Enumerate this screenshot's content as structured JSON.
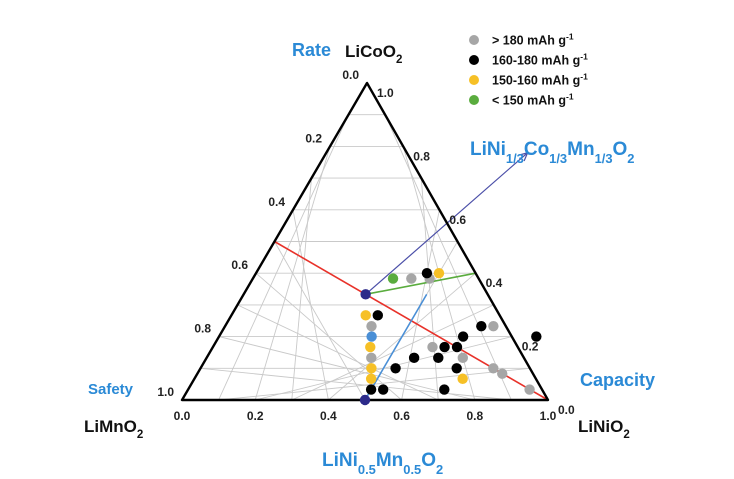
{
  "chart_data": {
    "type": "scatter",
    "subtype": "ternary",
    "vertices": {
      "top": {
        "name": "LiCoO",
        "sub": "2"
      },
      "left": {
        "name": "LiMnO",
        "sub": "2"
      },
      "right": {
        "name": "LiNiO",
        "sub": "2"
      }
    },
    "property_labels": {
      "rate": "Rate",
      "safety": "Safety",
      "capacity": "Capacity"
    },
    "ticks": {
      "bottom": [
        "0.0",
        "0.2",
        "0.4",
        "0.6",
        "0.8",
        "1.0"
      ],
      "left": [
        "0.0",
        "0.2",
        "0.4",
        "0.6",
        "0.8",
        "1.0"
      ],
      "right": [
        "1.0",
        "0.8",
        "0.6",
        "0.4",
        "0.2",
        "0.0"
      ]
    },
    "annotations": {
      "ncm": {
        "parts": [
          [
            "LiNi",
            ""
          ],
          [
            "1/3",
            "sub"
          ],
          [
            "Co",
            ""
          ],
          [
            "1/3",
            "sub"
          ],
          [
            "Mn",
            ""
          ],
          [
            "1/3",
            "sub"
          ],
          [
            "O",
            ""
          ],
          [
            "2",
            "sub"
          ]
        ]
      },
      "nm": {
        "parts": [
          [
            "LiNi",
            ""
          ],
          [
            "0.5",
            "sub"
          ],
          [
            "Mn",
            ""
          ],
          [
            "0.5",
            "sub"
          ],
          [
            "O",
            ""
          ],
          [
            "2",
            "sub"
          ]
        ]
      }
    },
    "legend": [
      {
        "label": "> 180 mAh g",
        "sup": "-1",
        "color": "#a6a6a6"
      },
      {
        "label": "160-180 mAh g",
        "sup": "-1",
        "color": "#000000"
      },
      {
        "label": "150-160 mAh g",
        "sup": "-1",
        "color": "#f6c026"
      },
      {
        "label": "< 150 mAh g",
        "sup": "-1",
        "color": "#5aac3e"
      }
    ],
    "lines": [
      {
        "name": "Co-free line",
        "color": "#e8322a",
        "from": {
          "ni": 0.0,
          "co": 0.5
        },
        "to": {
          "ni": 1.0,
          "co": 0.0
        }
      },
      {
        "name": "LiNi0.5Mn0.5O2 line",
        "color": "#4a8fd6",
        "from": {
          "ni": 0.5,
          "co": 0.0
        },
        "to": {
          "ni": 0.5,
          "co": 0.3333
        }
      },
      {
        "name": "NCM series",
        "color": "#5aac3e",
        "from": {
          "ni": 0.3333,
          "co": 0.3333
        },
        "to": {
          "ni": 0.6,
          "co": 0.4
        }
      }
    ],
    "arrow": {
      "color": "#4b4fa8",
      "from": {
        "ni": 0.3333,
        "co": 0.3333
      },
      "to": {
        "ni": 0.55,
        "co": 0.78
      }
    },
    "points": [
      {
        "ni": 0.3333,
        "co": 0.3333,
        "cat": "ncm"
      },
      {
        "ni": 0.383,
        "co": 0.383,
        "cat": "green"
      },
      {
        "ni": 0.433,
        "co": 0.383,
        "cat": "gray"
      },
      {
        "ni": 0.483,
        "co": 0.383,
        "cat": "gray"
      },
      {
        "ni": 0.5,
        "co": 0.4,
        "cat": "orange"
      },
      {
        "ni": 0.467,
        "co": 0.4,
        "cat": "black"
      },
      {
        "ni": 0.367,
        "co": 0.267,
        "cat": "orange"
      },
      {
        "ni": 0.4,
        "co": 0.267,
        "cat": "black"
      },
      {
        "ni": 0.4,
        "co": 0.233,
        "cat": "gray"
      },
      {
        "ni": 0.417,
        "co": 0.2,
        "cat": "blue"
      },
      {
        "ni": 0.43,
        "co": 0.167,
        "cat": "orange"
      },
      {
        "ni": 0.45,
        "co": 0.133,
        "cat": "gray"
      },
      {
        "ni": 0.467,
        "co": 0.1,
        "cat": "orange"
      },
      {
        "ni": 0.483,
        "co": 0.067,
        "cat": "orange"
      },
      {
        "ni": 0.5,
        "co": 0.033,
        "cat": "black"
      },
      {
        "ni": 0.5,
        "co": 0.0,
        "cat": "nm"
      },
      {
        "ni": 0.567,
        "co": 0.133,
        "cat": "black"
      },
      {
        "ni": 0.533,
        "co": 0.1,
        "cat": "black"
      },
      {
        "ni": 0.533,
        "co": 0.033,
        "cat": "black"
      },
      {
        "ni": 0.7,
        "co": 0.233,
        "cat": "black"
      },
      {
        "ni": 0.733,
        "co": 0.233,
        "cat": "gray"
      },
      {
        "ni": 0.667,
        "co": 0.2,
        "cat": "black"
      },
      {
        "ni": 0.633,
        "co": 0.167,
        "cat": "black"
      },
      {
        "ni": 0.667,
        "co": 0.167,
        "cat": "black"
      },
      {
        "ni": 0.6,
        "co": 0.167,
        "cat": "gray"
      },
      {
        "ni": 0.7,
        "co": 0.133,
        "cat": "gray"
      },
      {
        "ni": 0.633,
        "co": 0.133,
        "cat": "black"
      },
      {
        "ni": 0.7,
        "co": 0.1,
        "cat": "black"
      },
      {
        "ni": 0.8,
        "co": 0.1,
        "cat": "gray"
      },
      {
        "ni": 0.833,
        "co": 0.083,
        "cat": "gray"
      },
      {
        "ni": 0.733,
        "co": 0.067,
        "cat": "orange"
      },
      {
        "ni": 0.933,
        "co": 0.033,
        "cat": "gray"
      },
      {
        "ni": 0.7,
        "co": 0.033,
        "cat": "black"
      },
      {
        "ni": 0.867,
        "co": 0.2,
        "cat": "black"
      }
    ],
    "category_colors": {
      "gray": "#a6a6a6",
      "black": "#000000",
      "orange": "#f6c026",
      "green": "#5aac3e",
      "blue": "#4a8fd6",
      "ncm": "#2c2a8a",
      "nm": "#2c2a8a"
    }
  }
}
